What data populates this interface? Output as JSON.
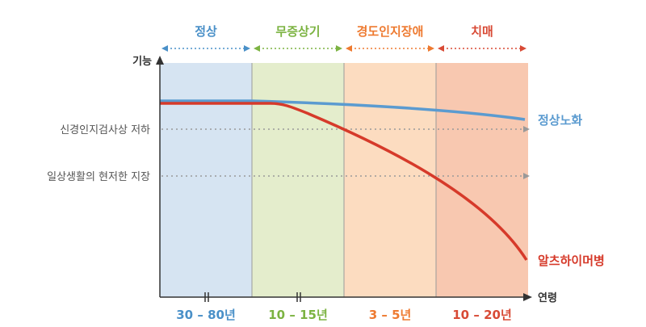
{
  "stages": [
    {
      "label": "정상",
      "duration": "30 – 80년",
      "color": "#4a90c8",
      "fill": "#d6e4f2"
    },
    {
      "label": "무증상기",
      "duration": "10 – 15년",
      "color": "#7cb342",
      "fill": "#e4edcc"
    },
    {
      "label": "경도인지장애",
      "duration": "3 – 5년",
      "color": "#ee7a30",
      "fill": "#fcdcc0"
    },
    {
      "label": "치매",
      "duration": "10 – 20년",
      "color": "#d84a35",
      "fill": "#f8c8b0"
    }
  ],
  "axes": {
    "y_label": "기능",
    "x_label": "연령"
  },
  "levels": [
    {
      "label": "신경인지검사상 저하"
    },
    {
      "label": "일상생활의 현저한 지장"
    }
  ],
  "curves": {
    "normal": {
      "label": "정상노화",
      "color": "#5b9bd0"
    },
    "alzheimer": {
      "label": "알츠하이머병",
      "color": "#d63a2a"
    }
  },
  "colors": {
    "axis": "#333333",
    "divider": "#9a9a9a",
    "dotted": "#999999"
  }
}
